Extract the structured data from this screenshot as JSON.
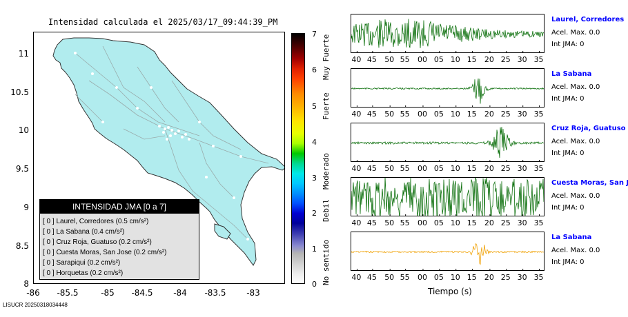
{
  "map": {
    "title": "Intensidad calculada el 2025/03/17_09:44:39_PM",
    "y_ticks": [
      "11",
      "10.5",
      "10",
      "9.5",
      "9",
      "8.5",
      "8"
    ],
    "x_ticks": [
      "-86",
      "-85.5",
      "-85",
      "-84.5",
      "-84",
      "-83.5",
      "-83"
    ],
    "land_color": "#b1ecee"
  },
  "legend": {
    "header": "INTENSIDAD JMA [0 a 7]",
    "items": [
      "[ 0 ]  Laurel, Corredores (0.5 cm/s²)",
      "[ 0 ]  La Sabana (0.4 cm/s²)",
      "[ 0 ]  Cruz Roja, Guatuso (0.2 cm/s²)",
      "[ 0 ]  Cuesta Moras, San Jose (0.2 cm/s²)",
      "[ 0 ]  Sarapiqui (0.2 cm/s²)",
      "[ 0 ]  Horquetas (0.2 cm/s²)"
    ]
  },
  "colorbar": {
    "ticks": [
      "7",
      "6",
      "5",
      "4",
      "3",
      "2",
      "1",
      "0"
    ],
    "labels": [
      "Muy Fuerte",
      "Fuerte",
      "Moderado",
      "Debil",
      "No sentido"
    ]
  },
  "traces": {
    "x_ticks": [
      "40",
      "45",
      "50",
      "55",
      "00",
      "05",
      "10",
      "15",
      "20",
      "25",
      "30",
      "35"
    ],
    "x_title": "Tiempo (s)",
    "stations": [
      {
        "name": "Laurel, Corredores",
        "acel": "Acel. Max. 0.0",
        "int": "Int JMA: 0",
        "color": "#0a6e0a"
      },
      {
        "name": "La Sabana",
        "acel": "Acel. Max. 0.0",
        "int": "Int JMA: 0",
        "color": "#0a6e0a"
      },
      {
        "name": "Cruz Roja, Guatuso",
        "acel": "Acel. Max. 0.0",
        "int": "Int JMA: 0",
        "color": "#0a6e0a"
      },
      {
        "name": "Cuesta Moras, San Jose",
        "acel": "Acel. Max. 0.0",
        "int": "Int JMA: 0",
        "color": "#0a6e0a"
      },
      {
        "name": "La Sabana",
        "acel": "Acel. Max. 0.0",
        "int": "Int JMA: 0",
        "color": "#f0a000"
      }
    ]
  },
  "footer": "LISUCR 20250318034448"
}
